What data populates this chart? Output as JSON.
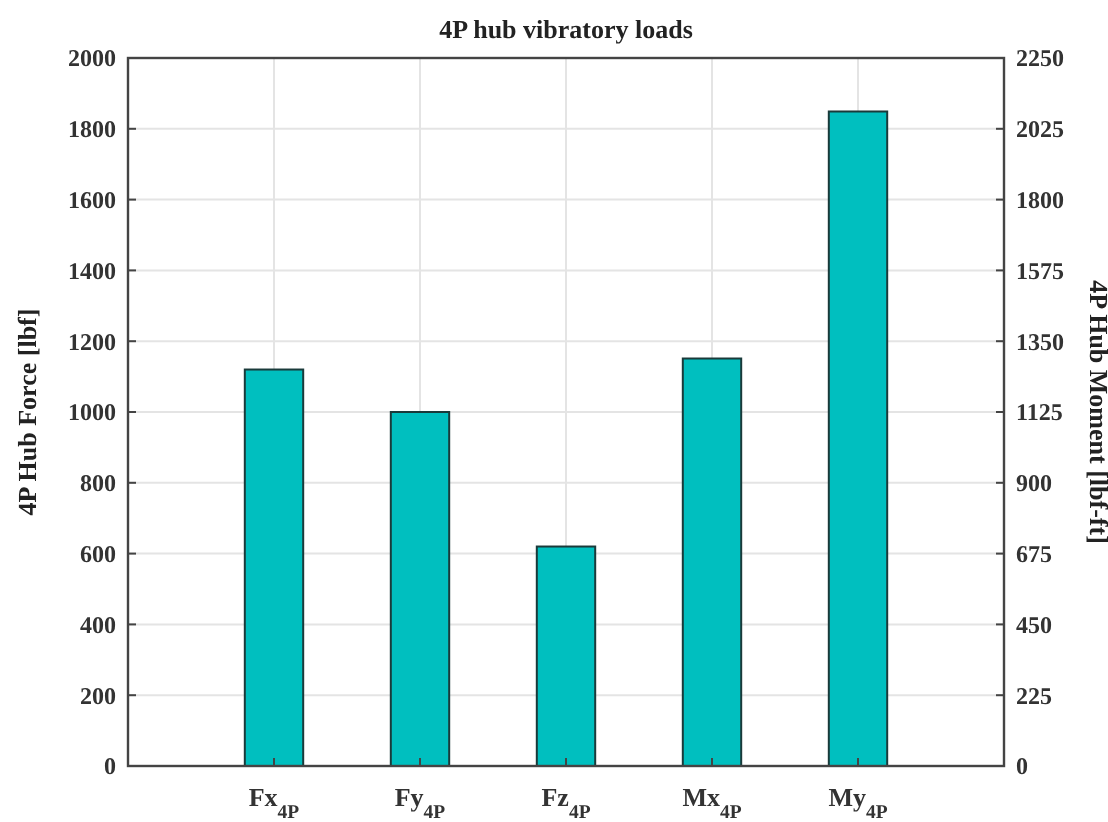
{
  "chart_data": {
    "type": "bar",
    "title": "4P hub vibratory loads",
    "ylabel": "4P Hub Force [lbf]",
    "y2label": "4P Hub Moment [lbf-ft]",
    "categories": [
      "Fx$_{4P}$",
      "Fy$_{4P}$",
      "Fz$_{4P}$",
      "Mx$_{4P}$",
      "My$_{4P}$"
    ],
    "series": [
      {
        "color": "#00bfbf",
        "values": [
          1120,
          1000,
          620,
          null,
          null
        ]
      },
      {
        "color": "#00bfbf",
        "axis": "y2",
        "values": [
          null,
          null,
          null,
          1295,
          2080
        ]
      }
    ],
    "ylim": [
      0,
      2000
    ],
    "yticks": [
      0,
      200,
      400,
      600,
      800,
      1000,
      1200,
      1400,
      1600,
      1800,
      2000
    ],
    "y2lim": [
      0,
      2250
    ],
    "y2ticks": [
      0,
      225,
      450,
      675,
      900,
      1125,
      1350,
      1575,
      1800,
      2025,
      2250
    ],
    "grid": true
  }
}
